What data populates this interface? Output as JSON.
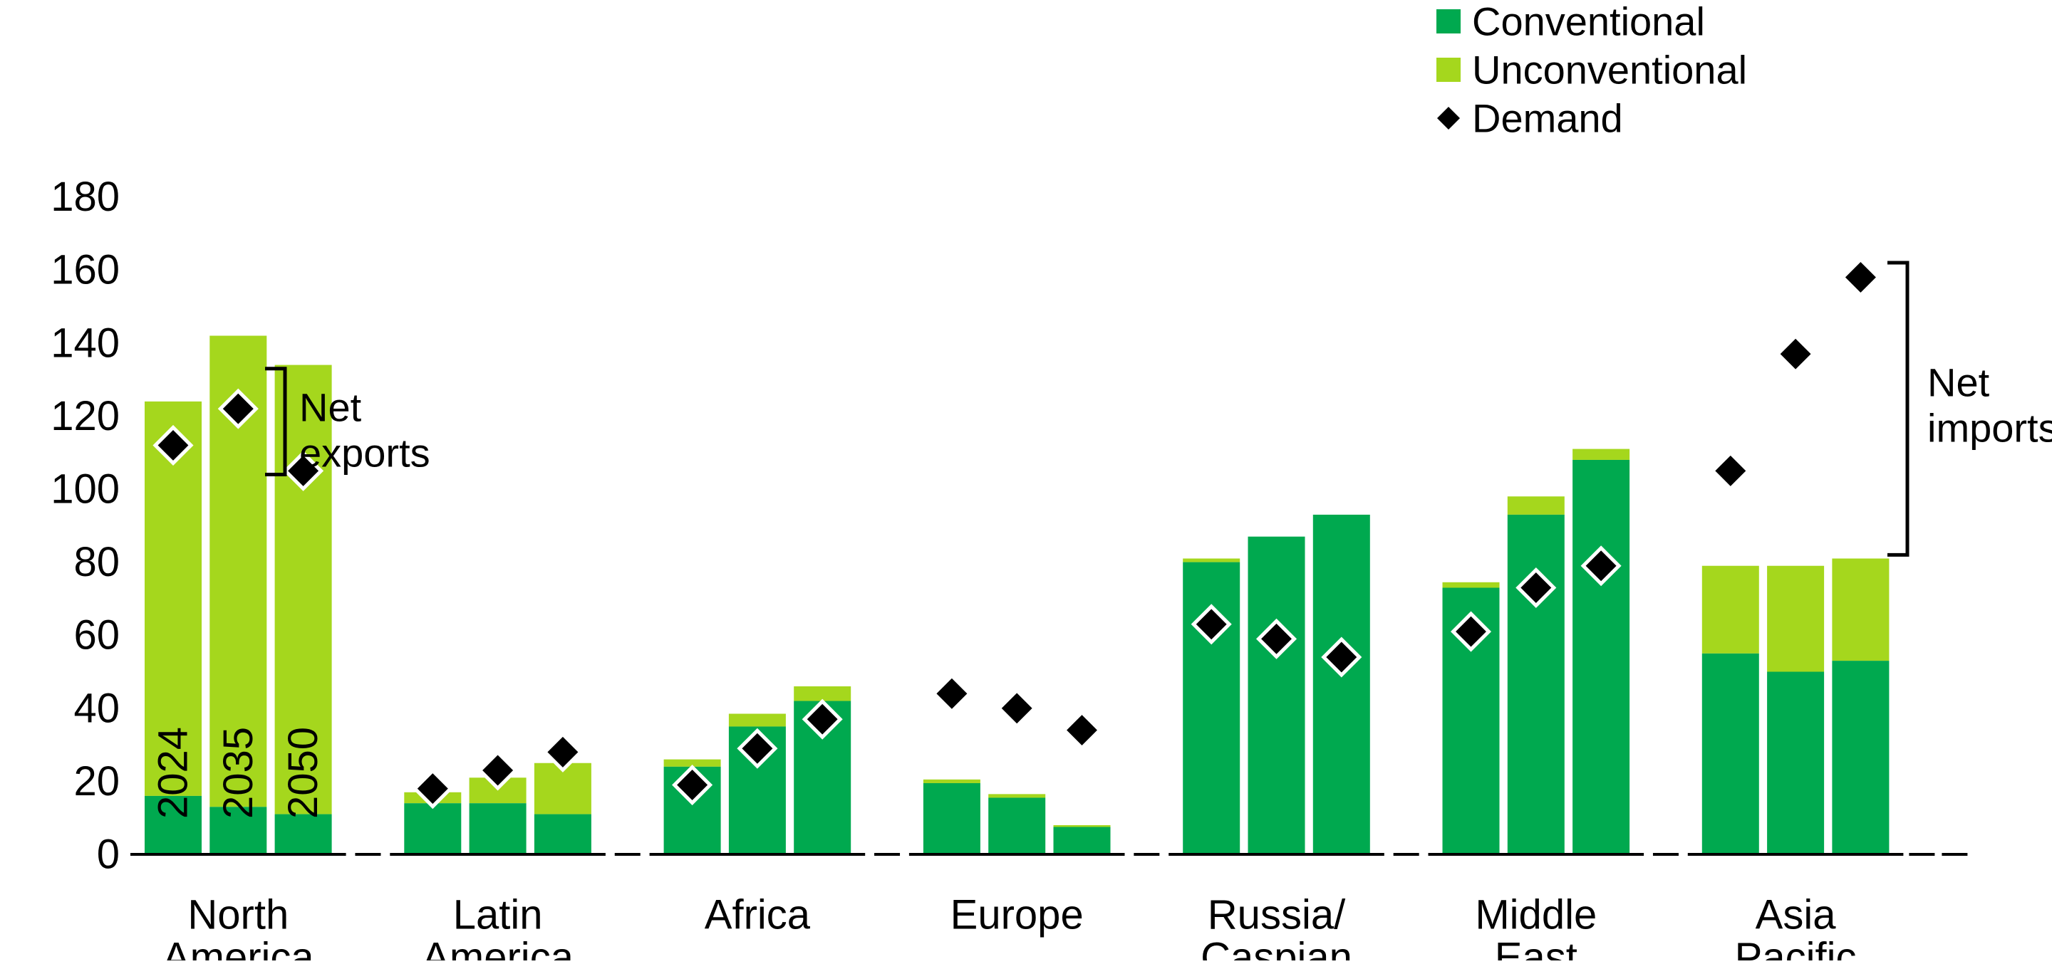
{
  "page": {
    "background": "#FFFFFF"
  },
  "legend": {
    "items": [
      {
        "label": "Conventional",
        "marker": "square",
        "color": "#00A94F"
      },
      {
        "label": "Unconventional",
        "marker": "square",
        "color": "#A5D71D"
      },
      {
        "label": "Demand",
        "marker": "diamond",
        "color": "#000000"
      }
    ]
  },
  "chart_data": {
    "type": "bar",
    "stacked": true,
    "orientation": "vertical",
    "title": "",
    "xlabel": "",
    "ylabel": "",
    "ylim": [
      0,
      180
    ],
    "ytick_step": 20,
    "yticks": [
      "0",
      "20",
      "40",
      "60",
      "80",
      "100",
      "120",
      "140",
      "160",
      "180"
    ],
    "grid": false,
    "legend_position": "top-right",
    "bar_years": [
      "2024",
      "2035",
      "2050"
    ],
    "year_labels_shown_in_group": "North America",
    "categories": [
      "North America",
      "Latin America",
      "Africa",
      "Europe",
      "Russia/Caspian",
      "Middle East",
      "Asia Pacific"
    ],
    "category_label_lines": [
      [
        "North",
        "America"
      ],
      [
        "Latin",
        "America"
      ],
      [
        "Africa"
      ],
      [
        "Europe"
      ],
      [
        "Russia/",
        "Caspian"
      ],
      [
        "Middle",
        "East"
      ],
      [
        "Asia",
        "Pacific"
      ]
    ],
    "series": [
      {
        "name": "Conventional",
        "role": "bar-segment-bottom",
        "color": "#00A94F",
        "values": [
          [
            16,
            13,
            11
          ],
          [
            14,
            14,
            11
          ],
          [
            24,
            35,
            42
          ],
          [
            19.5,
            15.5,
            7.5
          ],
          [
            80,
            87,
            93
          ],
          [
            73,
            93,
            108
          ],
          [
            55,
            50,
            53
          ]
        ]
      },
      {
        "name": "Unconventional",
        "role": "bar-segment-top",
        "color": "#A5D71D",
        "values": [
          [
            108,
            129,
            123
          ],
          [
            3,
            7,
            14
          ],
          [
            2,
            3.5,
            4
          ],
          [
            1,
            1,
            0.5
          ],
          [
            1,
            0,
            0
          ],
          [
            1.5,
            5,
            3
          ],
          [
            24,
            29,
            28
          ]
        ]
      },
      {
        "name": "Demand",
        "role": "point-diamond",
        "color": "#000000",
        "values": [
          [
            112,
            122,
            105
          ],
          [
            18,
            23,
            28
          ],
          [
            19,
            29,
            37
          ],
          [
            44,
            40,
            34
          ],
          [
            63,
            59,
            54
          ],
          [
            61,
            73,
            79
          ],
          [
            105,
            137,
            158
          ]
        ]
      }
    ],
    "bar_totals": [
      [
        124,
        142,
        134
      ],
      [
        17,
        21,
        25
      ],
      [
        26,
        38.5,
        46
      ],
      [
        20.5,
        16.5,
        8
      ],
      [
        81,
        87,
        93
      ],
      [
        74.5,
        98,
        111
      ],
      [
        79,
        79,
        81
      ]
    ],
    "annotations": [
      {
        "id": "net-exports",
        "lines": [
          "Net",
          "exports"
        ],
        "attached_to": "North America",
        "value_span": [
          104,
          133
        ]
      },
      {
        "id": "net-imports",
        "lines": [
          "Net",
          "imports"
        ],
        "attached_to": "Asia Pacific",
        "value_span": [
          82,
          162
        ]
      }
    ]
  }
}
